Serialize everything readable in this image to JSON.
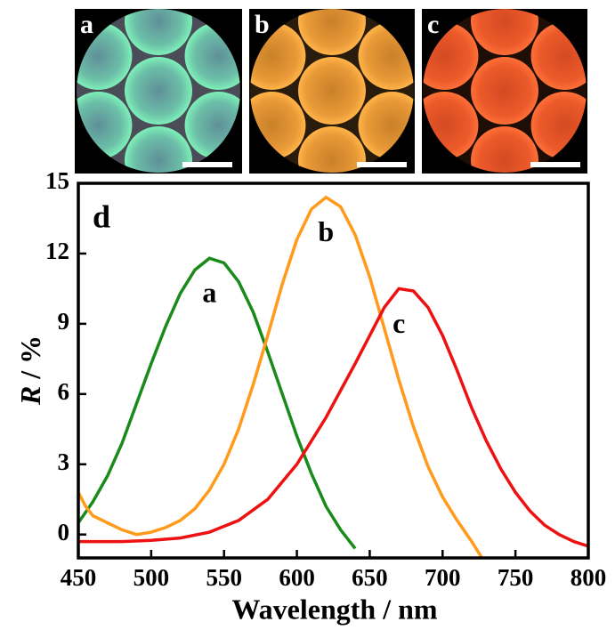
{
  "chart_data": {
    "type": "line",
    "panels": [
      {
        "label": "a"
      },
      {
        "label": "b"
      },
      {
        "label": "c"
      }
    ],
    "panel_label": "d",
    "xlabel": "Wavelength / nm",
    "ylabel_symbol": "R",
    "ylabel_unit": "/ %",
    "xlim": [
      450,
      800
    ],
    "xticks": [
      450,
      500,
      550,
      600,
      650,
      700,
      750,
      800
    ],
    "ylim": [
      -1,
      15
    ],
    "yticks": [
      0,
      3,
      6,
      9,
      12,
      15
    ],
    "series": [
      {
        "name": "a",
        "color": "#1a8a1a",
        "x": [
          450,
          460,
          470,
          480,
          490,
          500,
          510,
          520,
          530,
          540,
          550,
          560,
          570,
          580,
          590,
          600,
          610,
          620,
          630,
          640
        ],
        "values": [
          0.5,
          1.4,
          2.5,
          3.9,
          5.6,
          7.3,
          8.9,
          10.3,
          11.3,
          11.8,
          11.6,
          10.8,
          9.5,
          7.8,
          6.0,
          4.2,
          2.6,
          1.2,
          0.2,
          -0.6
        ]
      },
      {
        "name": "b",
        "color": "#ff9a1a",
        "x": [
          450,
          455,
          460,
          470,
          480,
          490,
          500,
          510,
          520,
          530,
          540,
          550,
          560,
          570,
          580,
          590,
          600,
          610,
          620,
          630,
          640,
          650,
          660,
          670,
          680,
          690,
          700,
          710,
          720,
          727
        ],
        "values": [
          1.8,
          1.2,
          0.8,
          0.5,
          0.2,
          0.0,
          0.1,
          0.3,
          0.6,
          1.1,
          1.9,
          3.0,
          4.5,
          6.4,
          8.5,
          10.7,
          12.6,
          13.9,
          14.4,
          14.0,
          12.8,
          11.0,
          8.8,
          6.6,
          4.6,
          2.9,
          1.6,
          0.6,
          -0.3,
          -1.0
        ]
      },
      {
        "name": "c",
        "color": "#ee1111",
        "x": [
          450,
          480,
          500,
          520,
          540,
          560,
          580,
          600,
          620,
          640,
          650,
          660,
          670,
          680,
          690,
          700,
          710,
          720,
          730,
          740,
          750,
          760,
          770,
          780,
          790,
          800
        ],
        "values": [
          -0.3,
          -0.3,
          -0.25,
          -0.15,
          0.1,
          0.6,
          1.5,
          3.0,
          5.0,
          7.3,
          8.5,
          9.7,
          10.5,
          10.4,
          9.7,
          8.5,
          7.0,
          5.4,
          4.0,
          2.8,
          1.8,
          1.0,
          0.4,
          0.0,
          -0.3,
          -0.5
        ]
      }
    ]
  }
}
